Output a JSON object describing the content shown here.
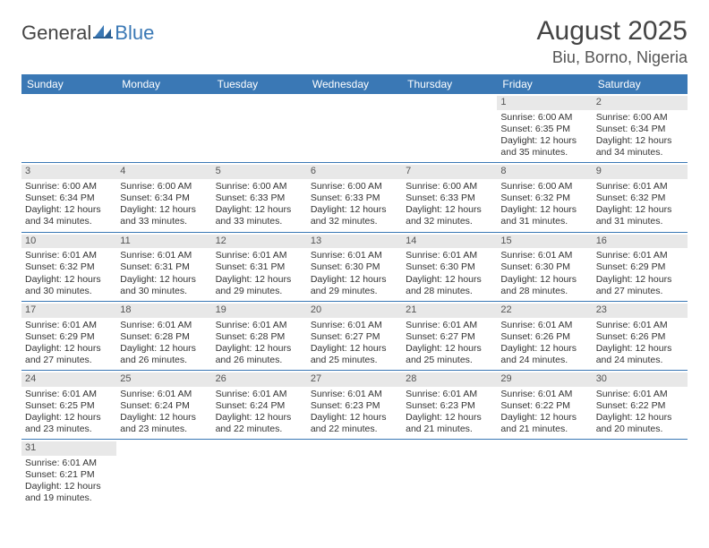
{
  "logo": {
    "text1": "General",
    "text2": "Blue"
  },
  "title": "August 2025",
  "location": "Biu, Borno, Nigeria",
  "colors": {
    "header_bg": "#3a78b5",
    "header_text": "#ffffff",
    "daynum_bg": "#e8e8e8",
    "row_border": "#3a78b5",
    "body_text": "#333333",
    "title_text": "#444444",
    "logo_blue": "#3a78b5"
  },
  "typography": {
    "title_fontsize": 30,
    "location_fontsize": 18,
    "header_fontsize": 12,
    "cell_fontsize": 10.5,
    "logo_fontsize": 22
  },
  "weekdays": [
    "Sunday",
    "Monday",
    "Tuesday",
    "Wednesday",
    "Thursday",
    "Friday",
    "Saturday"
  ],
  "weeks": [
    [
      null,
      null,
      null,
      null,
      null,
      {
        "n": "1",
        "sr": "Sunrise: 6:00 AM",
        "ss": "Sunset: 6:35 PM",
        "d1": "Daylight: 12 hours",
        "d2": "and 35 minutes."
      },
      {
        "n": "2",
        "sr": "Sunrise: 6:00 AM",
        "ss": "Sunset: 6:34 PM",
        "d1": "Daylight: 12 hours",
        "d2": "and 34 minutes."
      }
    ],
    [
      {
        "n": "3",
        "sr": "Sunrise: 6:00 AM",
        "ss": "Sunset: 6:34 PM",
        "d1": "Daylight: 12 hours",
        "d2": "and 34 minutes."
      },
      {
        "n": "4",
        "sr": "Sunrise: 6:00 AM",
        "ss": "Sunset: 6:34 PM",
        "d1": "Daylight: 12 hours",
        "d2": "and 33 minutes."
      },
      {
        "n": "5",
        "sr": "Sunrise: 6:00 AM",
        "ss": "Sunset: 6:33 PM",
        "d1": "Daylight: 12 hours",
        "d2": "and 33 minutes."
      },
      {
        "n": "6",
        "sr": "Sunrise: 6:00 AM",
        "ss": "Sunset: 6:33 PM",
        "d1": "Daylight: 12 hours",
        "d2": "and 32 minutes."
      },
      {
        "n": "7",
        "sr": "Sunrise: 6:00 AM",
        "ss": "Sunset: 6:33 PM",
        "d1": "Daylight: 12 hours",
        "d2": "and 32 minutes."
      },
      {
        "n": "8",
        "sr": "Sunrise: 6:00 AM",
        "ss": "Sunset: 6:32 PM",
        "d1": "Daylight: 12 hours",
        "d2": "and 31 minutes."
      },
      {
        "n": "9",
        "sr": "Sunrise: 6:01 AM",
        "ss": "Sunset: 6:32 PM",
        "d1": "Daylight: 12 hours",
        "d2": "and 31 minutes."
      }
    ],
    [
      {
        "n": "10",
        "sr": "Sunrise: 6:01 AM",
        "ss": "Sunset: 6:32 PM",
        "d1": "Daylight: 12 hours",
        "d2": "and 30 minutes."
      },
      {
        "n": "11",
        "sr": "Sunrise: 6:01 AM",
        "ss": "Sunset: 6:31 PM",
        "d1": "Daylight: 12 hours",
        "d2": "and 30 minutes."
      },
      {
        "n": "12",
        "sr": "Sunrise: 6:01 AM",
        "ss": "Sunset: 6:31 PM",
        "d1": "Daylight: 12 hours",
        "d2": "and 29 minutes."
      },
      {
        "n": "13",
        "sr": "Sunrise: 6:01 AM",
        "ss": "Sunset: 6:30 PM",
        "d1": "Daylight: 12 hours",
        "d2": "and 29 minutes."
      },
      {
        "n": "14",
        "sr": "Sunrise: 6:01 AM",
        "ss": "Sunset: 6:30 PM",
        "d1": "Daylight: 12 hours",
        "d2": "and 28 minutes."
      },
      {
        "n": "15",
        "sr": "Sunrise: 6:01 AM",
        "ss": "Sunset: 6:30 PM",
        "d1": "Daylight: 12 hours",
        "d2": "and 28 minutes."
      },
      {
        "n": "16",
        "sr": "Sunrise: 6:01 AM",
        "ss": "Sunset: 6:29 PM",
        "d1": "Daylight: 12 hours",
        "d2": "and 27 minutes."
      }
    ],
    [
      {
        "n": "17",
        "sr": "Sunrise: 6:01 AM",
        "ss": "Sunset: 6:29 PM",
        "d1": "Daylight: 12 hours",
        "d2": "and 27 minutes."
      },
      {
        "n": "18",
        "sr": "Sunrise: 6:01 AM",
        "ss": "Sunset: 6:28 PM",
        "d1": "Daylight: 12 hours",
        "d2": "and 26 minutes."
      },
      {
        "n": "19",
        "sr": "Sunrise: 6:01 AM",
        "ss": "Sunset: 6:28 PM",
        "d1": "Daylight: 12 hours",
        "d2": "and 26 minutes."
      },
      {
        "n": "20",
        "sr": "Sunrise: 6:01 AM",
        "ss": "Sunset: 6:27 PM",
        "d1": "Daylight: 12 hours",
        "d2": "and 25 minutes."
      },
      {
        "n": "21",
        "sr": "Sunrise: 6:01 AM",
        "ss": "Sunset: 6:27 PM",
        "d1": "Daylight: 12 hours",
        "d2": "and 25 minutes."
      },
      {
        "n": "22",
        "sr": "Sunrise: 6:01 AM",
        "ss": "Sunset: 6:26 PM",
        "d1": "Daylight: 12 hours",
        "d2": "and 24 minutes."
      },
      {
        "n": "23",
        "sr": "Sunrise: 6:01 AM",
        "ss": "Sunset: 6:26 PM",
        "d1": "Daylight: 12 hours",
        "d2": "and 24 minutes."
      }
    ],
    [
      {
        "n": "24",
        "sr": "Sunrise: 6:01 AM",
        "ss": "Sunset: 6:25 PM",
        "d1": "Daylight: 12 hours",
        "d2": "and 23 minutes."
      },
      {
        "n": "25",
        "sr": "Sunrise: 6:01 AM",
        "ss": "Sunset: 6:24 PM",
        "d1": "Daylight: 12 hours",
        "d2": "and 23 minutes."
      },
      {
        "n": "26",
        "sr": "Sunrise: 6:01 AM",
        "ss": "Sunset: 6:24 PM",
        "d1": "Daylight: 12 hours",
        "d2": "and 22 minutes."
      },
      {
        "n": "27",
        "sr": "Sunrise: 6:01 AM",
        "ss": "Sunset: 6:23 PM",
        "d1": "Daylight: 12 hours",
        "d2": "and 22 minutes."
      },
      {
        "n": "28",
        "sr": "Sunrise: 6:01 AM",
        "ss": "Sunset: 6:23 PM",
        "d1": "Daylight: 12 hours",
        "d2": "and 21 minutes."
      },
      {
        "n": "29",
        "sr": "Sunrise: 6:01 AM",
        "ss": "Sunset: 6:22 PM",
        "d1": "Daylight: 12 hours",
        "d2": "and 21 minutes."
      },
      {
        "n": "30",
        "sr": "Sunrise: 6:01 AM",
        "ss": "Sunset: 6:22 PM",
        "d1": "Daylight: 12 hours",
        "d2": "and 20 minutes."
      }
    ],
    [
      {
        "n": "31",
        "sr": "Sunrise: 6:01 AM",
        "ss": "Sunset: 6:21 PM",
        "d1": "Daylight: 12 hours",
        "d2": "and 19 minutes."
      },
      null,
      null,
      null,
      null,
      null,
      null
    ]
  ]
}
